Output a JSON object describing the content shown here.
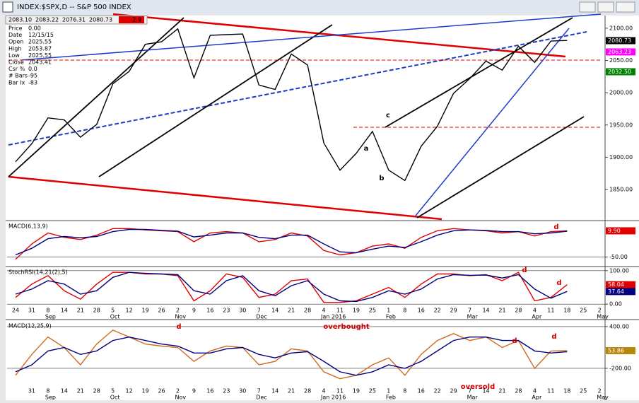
{
  "window": {
    "title": "INDEX:$SPX,D -- S&P 500 INDEX",
    "quote": [
      "2083.10",
      "2083.22",
      "2076.31",
      "2080.73"
    ],
    "change": "-2.9",
    "info": [
      [
        "Price",
        "0.00"
      ],
      [
        "Date",
        "12/15/15"
      ],
      [
        "Open",
        "2025.55"
      ],
      [
        "High",
        "2053.87"
      ],
      [
        "Low",
        "2025.55"
      ],
      [
        "Close",
        "2043.41"
      ],
      [
        "Csr %",
        "0.0"
      ],
      [
        "# Bars",
        "-95"
      ],
      [
        "Bar Ix",
        "-83"
      ]
    ]
  },
  "chart_data": [
    {
      "type": "line",
      "ylim": [
        1804,
        2124
      ],
      "yticks": [
        {
          "value": 1850,
          "label": "1850.00"
        },
        {
          "value": 1900,
          "label": "1900.00"
        },
        {
          "value": 1950,
          "label": "1950.00"
        },
        {
          "value": 2000,
          "label": "2000.00"
        },
        {
          "value": 2050,
          "label": "2050.00"
        },
        {
          "value": 2100,
          "label": "2100.00"
        }
      ],
      "series": [
        {
          "color": "#000000",
          "values": [
            1893,
            1921,
            1961,
            1958,
            1931,
            1951,
            2014,
            2033,
            2075,
            2079,
            2099,
            2023,
            2089,
            2090,
            2091,
            2012,
            2005,
            2060,
            2043,
            1922,
            1880,
            1906,
            1940,
            1880,
            1864,
            1917,
            1948,
            1999,
            2022,
            2049,
            2035,
            2072,
            2047,
            2080,
            2081,
            null,
            null
          ]
        }
      ],
      "tags": [
        {
          "value": 2080.73,
          "label": "2080.73",
          "color": "#000000"
        },
        {
          "value": 2063.23,
          "label": "2063.23",
          "color": "#ff00ff"
        },
        {
          "value": 2032.5,
          "label": "2032.50",
          "color": "#008000"
        }
      ],
      "annotations": [
        "a",
        "b",
        "c"
      ]
    },
    {
      "type": "line",
      "title": "MACD(6,13,9)",
      "ylim": [
        -70,
        30
      ],
      "yticks": [
        {
          "value": -50,
          "label": "-50.00"
        }
      ],
      "series": [
        {
          "color": "#e00000",
          "values": [
            -55,
            -20,
            5,
            -5,
            -10,
            0,
            15,
            15,
            12,
            10,
            8,
            -15,
            5,
            8,
            5,
            -15,
            -10,
            5,
            -2,
            -35,
            -45,
            -40,
            -25,
            -20,
            -30,
            -5,
            10,
            15,
            12,
            10,
            5,
            8,
            -2,
            8,
            10,
            null,
            null
          ]
        },
        {
          "color": "#000080",
          "values": [
            -45,
            -30,
            -8,
            -3,
            -6,
            -3,
            8,
            13,
            13,
            11,
            9,
            -4,
            0,
            5,
            5,
            -5,
            -8,
            0,
            0,
            -20,
            -38,
            -40,
            -32,
            -25,
            -28,
            -15,
            0,
            10,
            12,
            11,
            8,
            8,
            3,
            5,
            9,
            null,
            null
          ]
        }
      ],
      "tags": [
        {
          "value": 9.9,
          "label": "9.90",
          "color": "#e00000"
        }
      ],
      "annotations": [
        "d"
      ]
    },
    {
      "type": "line",
      "title": "StochRSI(14,21(2),5)",
      "ylim": [
        -8,
        108
      ],
      "yticks": [
        {
          "value": 0,
          "label": "0.00"
        },
        {
          "value": 100,
          "label": "100.00"
        }
      ],
      "series": [
        {
          "color": "#e00000",
          "values": [
            20,
            60,
            85,
            40,
            15,
            60,
            95,
            95,
            90,
            90,
            85,
            10,
            40,
            90,
            80,
            20,
            30,
            70,
            75,
            5,
            5,
            10,
            30,
            50,
            20,
            60,
            90,
            90,
            85,
            88,
            70,
            95,
            10,
            20,
            58,
            null,
            null
          ]
        },
        {
          "color": "#000080",
          "values": [
            30,
            45,
            70,
            60,
            30,
            40,
            80,
            95,
            92,
            90,
            88,
            40,
            30,
            70,
            85,
            40,
            25,
            55,
            70,
            30,
            10,
            8,
            20,
            40,
            30,
            45,
            75,
            88,
            86,
            87,
            78,
            88,
            45,
            18,
            38,
            null,
            null
          ]
        }
      ],
      "tags": [
        {
          "value": 58.04,
          "label": "58.04",
          "color": "#e00000"
        },
        {
          "value": 37.64,
          "label": "37.64",
          "color": "#000080"
        }
      ],
      "annotations": [
        "d",
        "d"
      ],
      "categories": [
        "24",
        "31",
        "8",
        "14",
        "21",
        "28",
        "5",
        "12",
        "19",
        "26",
        "2",
        "9",
        "16",
        "23",
        "30",
        "7",
        "14",
        "21",
        "28",
        "4",
        "11",
        "19",
        "25",
        "1",
        "8",
        "16",
        "22",
        "29",
        "7",
        "14",
        "21",
        "28",
        "4",
        "11",
        "18",
        "25",
        "2"
      ],
      "months": [
        null,
        null,
        "Sep",
        null,
        null,
        null,
        "Oct",
        null,
        null,
        null,
        "Nov",
        null,
        null,
        null,
        null,
        "Dec",
        null,
        null,
        null,
        "Jan 2016",
        null,
        null,
        null,
        "Feb",
        null,
        null,
        null,
        null,
        "Mar",
        null,
        null,
        null,
        "Apr",
        null,
        null,
        null,
        "May"
      ]
    },
    {
      "type": "line",
      "title": "MACD(12,25,9)",
      "ylim": [
        -475,
        471
      ],
      "yticks": [
        {
          "value": -200,
          "label": "-200.00"
        },
        {
          "value": 400,
          "label": "400.00"
        }
      ],
      "series": [
        {
          "color": "#d2691e",
          "values": [
            -300,
            0,
            250,
            100,
            -150,
            150,
            350,
            250,
            150,
            120,
            100,
            -100,
            50,
            120,
            100,
            -150,
            -100,
            80,
            50,
            -250,
            -350,
            -300,
            -150,
            -50,
            -300,
            0,
            200,
            300,
            200,
            250,
            100,
            200,
            -200,
            50,
            54,
            null,
            null
          ]
        },
        {
          "color": "#000080",
          "values": [
            -250,
            -150,
            50,
            100,
            0,
            50,
            200,
            250,
            200,
            150,
            120,
            20,
            20,
            80,
            100,
            0,
            -50,
            20,
            40,
            -100,
            -250,
            -300,
            -250,
            -150,
            -200,
            -100,
            50,
            200,
            250,
            250,
            200,
            200,
            50,
            20,
            40,
            null,
            null
          ]
        }
      ],
      "tags": [
        {
          "value": 53.86,
          "label": "53.86",
          "color": "#b8860b"
        }
      ],
      "annotations": [
        "d",
        "overbought",
        "d",
        "d",
        "oversold"
      ],
      "categories": [
        null,
        "31",
        "8",
        "14",
        "21",
        "28",
        "5",
        "12",
        "19",
        "26",
        "2",
        "9",
        "16",
        "23",
        "30",
        "7",
        "14",
        "21",
        "28",
        "4",
        "11",
        "19",
        "25",
        "1",
        "8",
        "16",
        "22",
        "29",
        "7",
        "14",
        "21",
        "28",
        "4",
        "11",
        "18",
        "25",
        "2"
      ],
      "months": [
        null,
        null,
        "Sep",
        null,
        null,
        null,
        "Oct",
        null,
        null,
        null,
        "Nov",
        null,
        null,
        null,
        null,
        "Dec",
        null,
        null,
        null,
        "Jan 2016",
        null,
        null,
        null,
        "Feb",
        null,
        null,
        null,
        null,
        "Mar",
        null,
        null,
        null,
        "Apr",
        null,
        null,
        null,
        "May"
      ]
    }
  ]
}
